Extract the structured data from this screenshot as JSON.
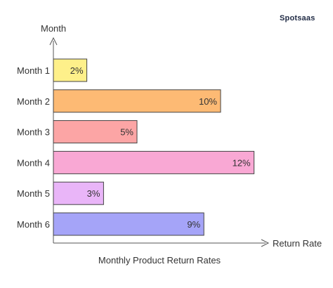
{
  "brand": "Spotsaas",
  "colors": {
    "bars": [
      "#fef08a",
      "#fdba74",
      "#fca5a5",
      "#f9a8d4",
      "#e9b5f8",
      "#a5a4f8"
    ],
    "axis": "#555555",
    "text": "#333333"
  },
  "chart_data": {
    "type": "bar",
    "orientation": "horizontal",
    "title": "Monthly Product Return Rates",
    "xlabel": "Return Rate",
    "ylabel": "Month",
    "categories": [
      "Month 1",
      "Month 2",
      "Month 3",
      "Month 4",
      "Month 5",
      "Month 6"
    ],
    "values": [
      2,
      10,
      5,
      12,
      3,
      9
    ],
    "value_labels": [
      "2%",
      "10%",
      "5%",
      "12%",
      "3%",
      "9%"
    ],
    "unit": "%",
    "grid": false,
    "legend": "none"
  }
}
